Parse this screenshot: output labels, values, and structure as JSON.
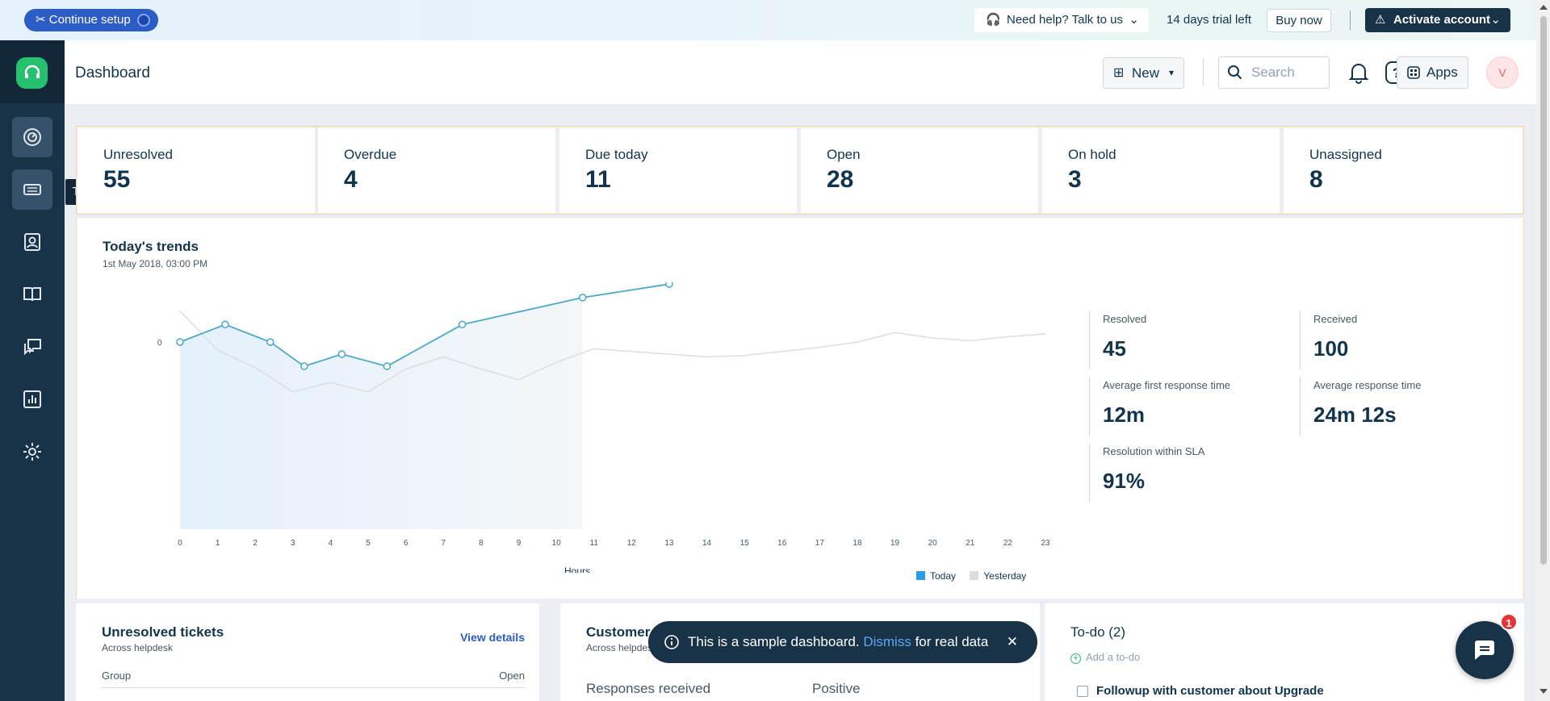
{
  "topbar": {
    "setup_label": "Continue setup",
    "help_label": "Need help? Talk to us",
    "trial_text": "14 days trial left",
    "buy_label": "Buy now",
    "activate_label": "Activate account"
  },
  "sidebar": {
    "items": [
      {
        "name": "dashboard",
        "icon": "dashboard-icon"
      },
      {
        "name": "tickets",
        "icon": "ticket-icon"
      },
      {
        "name": "contacts",
        "icon": "contact-icon"
      },
      {
        "name": "solutions",
        "icon": "book-icon"
      },
      {
        "name": "forums",
        "icon": "chat-icon"
      },
      {
        "name": "reports",
        "icon": "report-icon"
      },
      {
        "name": "admin",
        "icon": "gear-icon"
      }
    ],
    "tooltip": "Tickets"
  },
  "header": {
    "title": "Dashboard",
    "new_label": "New",
    "search_placeholder": "Search",
    "apps_label": "Apps",
    "avatar_initial": "V"
  },
  "stats": [
    {
      "label": "Unresolved",
      "value": "55"
    },
    {
      "label": "Overdue",
      "value": "4"
    },
    {
      "label": "Due today",
      "value": "11"
    },
    {
      "label": "Open",
      "value": "28"
    },
    {
      "label": "On hold",
      "value": "3"
    },
    {
      "label": "Unassigned",
      "value": "8"
    }
  ],
  "trends": {
    "title": "Today's trends",
    "subtitle": "1st May 2018, 03:00 PM",
    "metrics": [
      {
        "label": "Resolved",
        "value": "45"
      },
      {
        "label": "Received",
        "value": "100"
      },
      {
        "label": "Average first response time",
        "value": "12m"
      },
      {
        "label": "Average response time",
        "value": "24m 12s"
      },
      {
        "label": "Resolution within SLA",
        "value": "91%"
      }
    ]
  },
  "chart_data": {
    "type": "line",
    "xlabel": "Hours",
    "ylabel": "",
    "y_tick_label": "0",
    "x": [
      0,
      1,
      2,
      3,
      4,
      5,
      6,
      7,
      8,
      9,
      10,
      11,
      12,
      13,
      14,
      15,
      16,
      17,
      18,
      19,
      20,
      21,
      22,
      23
    ],
    "series": [
      {
        "name": "Today",
        "color": "#2c9be8",
        "x": [
          0,
          1.2,
          2.4,
          3.3,
          4.3,
          5.5,
          7.5,
          10.7,
          13
        ],
        "values": [
          0,
          1.3,
          0,
          -1.8,
          -0.9,
          -1.8,
          1.3,
          3.3,
          4.3
        ]
      },
      {
        "name": "Yesterday",
        "color": "#dddddd",
        "x": [
          0,
          1,
          2,
          3,
          4,
          5,
          6,
          7,
          8,
          9,
          10,
          11,
          12,
          13,
          14,
          15,
          16,
          17,
          18,
          19,
          20,
          21,
          22,
          23
        ],
        "values": [
          2.3,
          -0.6,
          -1.9,
          -3.7,
          -3.0,
          -3.7,
          -2.0,
          -1.1,
          -2.0,
          -2.8,
          -1.5,
          -0.5,
          -0.7,
          -0.9,
          -1.1,
          -1.0,
          -0.7,
          -0.4,
          0,
          0.7,
          0.3,
          0.1,
          0.4,
          0.6
        ]
      }
    ]
  },
  "unresolved_card": {
    "title": "Unresolved tickets",
    "subtitle": "Across helpdesk",
    "link": "View details",
    "col_group": "Group",
    "col_open": "Open"
  },
  "csat_card": {
    "title": "Customer satisfaction",
    "subtitle": "Across helpdesk",
    "col_responses": "Responses received",
    "col_positive": "Positive"
  },
  "todo_card": {
    "title": "To-do (2)",
    "add_placeholder": "Add a to-do",
    "item": "Followup with customer about Upgrade"
  },
  "toast": {
    "message": "This is a sample dashboard.",
    "dismiss": "Dismiss",
    "suffix": "for real data"
  },
  "chat": {
    "badge": "1"
  }
}
